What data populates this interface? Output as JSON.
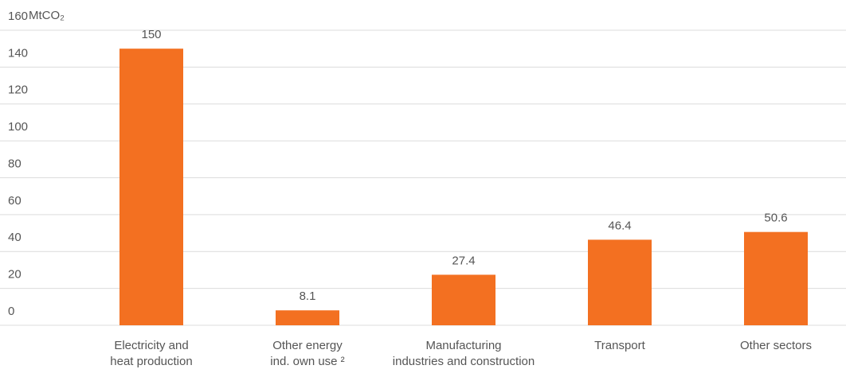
{
  "chart_data": {
    "type": "bar",
    "y_label": "MtCO₂",
    "categories": [
      [
        "Electricity and",
        "heat production"
      ],
      [
        "Other energy",
        "ind. own use ²"
      ],
      [
        "Manufacturing",
        "industries and construction"
      ],
      [
        "Transport"
      ],
      [
        "Other sectors"
      ]
    ],
    "values": [
      150,
      8.1,
      27.4,
      46.4,
      50.6
    ],
    "color": "#f37021",
    "ylim": [
      0,
      160
    ],
    "yticks": [
      0,
      20,
      40,
      60,
      80,
      100,
      120,
      140,
      160
    ],
    "grid": true
  }
}
